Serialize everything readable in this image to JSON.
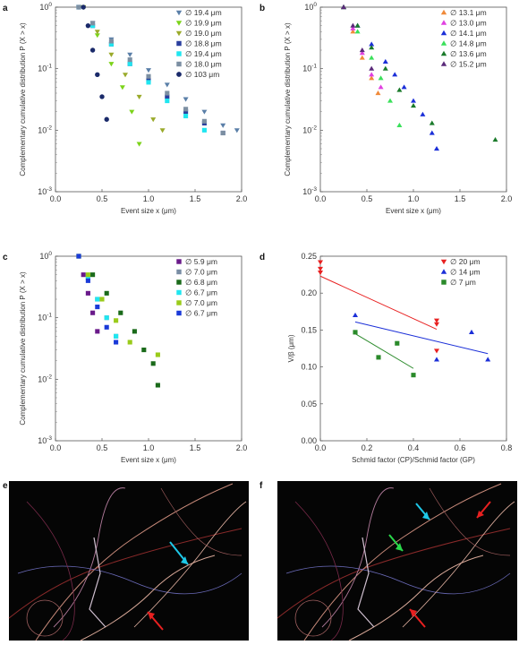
{
  "chart_data": [
    {
      "panel": "a",
      "type": "scatter",
      "yscale": "log",
      "xlabel": "Event size x (μm)",
      "ylabel": "Complementary cumulative distribution P (X > x)",
      "xlim": [
        0,
        2.0
      ],
      "ylim": [
        0.001,
        1
      ],
      "xticks": [
        "0.0",
        "0.5",
        "1.0",
        "1.5",
        "2.0"
      ],
      "yticks": [
        "10^0",
        "10^-1",
        "10^-2",
        "10^-3"
      ],
      "legend_position": "top-right",
      "series": [
        {
          "name": "∅ 19.4 μm",
          "marker": "tri-down",
          "color": "#5a7fa8",
          "x": [
            0.25,
            0.4,
            0.6,
            0.8,
            1.0,
            1.2,
            1.4,
            1.6,
            1.8,
            1.95
          ],
          "y": [
            1,
            0.55,
            0.3,
            0.17,
            0.095,
            0.055,
            0.032,
            0.02,
            0.012,
            0.01
          ]
        },
        {
          "name": "∅ 19.9 μm",
          "marker": "tri-down",
          "color": "#7cd31a",
          "x": [
            0.3,
            0.45,
            0.6,
            0.72,
            0.82,
            0.9
          ],
          "y": [
            1,
            0.35,
            0.12,
            0.05,
            0.02,
            0.006
          ]
        },
        {
          "name": "∅ 19.0 μm",
          "marker": "tri-down",
          "color": "#9aaa2a",
          "x": [
            0.3,
            0.45,
            0.6,
            0.75,
            0.9,
            1.05,
            1.15
          ],
          "y": [
            1,
            0.4,
            0.17,
            0.08,
            0.035,
            0.015,
            0.01
          ]
        },
        {
          "name": "∅ 18.8 μm",
          "marker": "square",
          "color": "#2a3f9e",
          "x": [
            0.25,
            0.4,
            0.6,
            0.8,
            1.0,
            1.2,
            1.4,
            1.6,
            1.8
          ],
          "y": [
            1,
            0.5,
            0.25,
            0.12,
            0.065,
            0.035,
            0.02,
            0.013,
            0.009
          ]
        },
        {
          "name": "∅ 19.4 μm",
          "marker": "square",
          "color": "#20e6f0",
          "x": [
            0.25,
            0.4,
            0.6,
            0.8,
            1.0,
            1.2,
            1.4,
            1.6
          ],
          "y": [
            1,
            0.5,
            0.25,
            0.12,
            0.06,
            0.03,
            0.017,
            0.01
          ]
        },
        {
          "name": "∅ 18.0 μm",
          "marker": "square",
          "color": "#7c8fa2",
          "x": [
            0.25,
            0.4,
            0.6,
            0.8,
            1.0,
            1.2,
            1.4,
            1.6,
            1.8
          ],
          "y": [
            1,
            0.55,
            0.28,
            0.14,
            0.075,
            0.04,
            0.022,
            0.014,
            0.009
          ]
        },
        {
          "name": "∅ 103 μm",
          "marker": "circle",
          "color": "#1a2a6a",
          "x": [
            0.3,
            0.35,
            0.4,
            0.45,
            0.5,
            0.55
          ],
          "y": [
            1,
            0.5,
            0.2,
            0.08,
            0.035,
            0.015
          ]
        }
      ]
    },
    {
      "panel": "b",
      "type": "scatter",
      "yscale": "log",
      "xlabel": "Event size x (μm)",
      "ylabel": "Complementary cumulative distribution P (X > x)",
      "xlim": [
        0,
        2.0
      ],
      "ylim": [
        0.001,
        1
      ],
      "xticks": [
        "0.0",
        "0.5",
        "1.0",
        "1.5",
        "2.0"
      ],
      "yticks": [
        "10^0",
        "10^-1",
        "10^-2",
        "10^-3"
      ],
      "legend_position": "top-right",
      "series": [
        {
          "name": "∅ 13.1 μm",
          "marker": "tri-up",
          "color": "#f08a3a",
          "x": [
            0.25,
            0.35,
            0.45,
            0.55,
            0.62
          ],
          "y": [
            1,
            0.4,
            0.15,
            0.07,
            0.04
          ]
        },
        {
          "name": "∅ 13.0 μm",
          "marker": "tri-up",
          "color": "#e040e0",
          "x": [
            0.25,
            0.35,
            0.45,
            0.55,
            0.65
          ],
          "y": [
            1,
            0.45,
            0.18,
            0.08,
            0.05
          ]
        },
        {
          "name": "∅ 14.1 μm",
          "marker": "tri-up",
          "color": "#1b2fd8",
          "x": [
            0.25,
            0.4,
            0.55,
            0.7,
            0.8,
            0.9,
            1.0,
            1.1,
            1.2,
            1.25
          ],
          "y": [
            1,
            0.5,
            0.25,
            0.13,
            0.08,
            0.05,
            0.03,
            0.018,
            0.009,
            0.005
          ]
        },
        {
          "name": "∅ 14.8 μm",
          "marker": "tri-up",
          "color": "#3ae05a",
          "x": [
            0.25,
            0.4,
            0.55,
            0.65,
            0.75,
            0.85
          ],
          "y": [
            1,
            0.4,
            0.15,
            0.07,
            0.03,
            0.012
          ]
        },
        {
          "name": "∅ 13.6 μm",
          "marker": "tri-up",
          "color": "#1a7a2a",
          "x": [
            0.25,
            0.4,
            0.55,
            0.7,
            0.85,
            1.0,
            1.2,
            1.88
          ],
          "y": [
            1,
            0.5,
            0.22,
            0.1,
            0.045,
            0.025,
            0.013,
            0.007
          ]
        },
        {
          "name": "∅ 15.2 μm",
          "marker": "tri-up",
          "color": "#5a2a7a",
          "x": [
            0.25,
            0.35,
            0.45,
            0.55
          ],
          "y": [
            1,
            0.5,
            0.2,
            0.1
          ]
        }
      ]
    },
    {
      "panel": "c",
      "type": "scatter",
      "yscale": "log",
      "xlabel": "Event size x (μm)",
      "ylabel": "Complementary cumulative distribution P (X > x)",
      "xlim": [
        0,
        2.0
      ],
      "ylim": [
        0.001,
        1
      ],
      "xticks": [
        "0.0",
        "0.5",
        "1.0",
        "1.5",
        "2.0"
      ],
      "yticks": [
        "10^0",
        "10^-1",
        "10^-2",
        "10^-3"
      ],
      "legend_position": "top-right",
      "series": [
        {
          "name": "∅ 5.9 μm",
          "marker": "square",
          "color": "#6a1a8a",
          "x": [
            0.25,
            0.3,
            0.35,
            0.4,
            0.45
          ],
          "y": [
            1,
            0.5,
            0.25,
            0.12,
            0.06
          ]
        },
        {
          "name": "∅ 7.0 μm",
          "marker": "square",
          "color": "#7a8ea4",
          "x": [
            0.25,
            0.35,
            0.45,
            0.55,
            0.65
          ],
          "y": [
            1,
            0.45,
            0.2,
            0.1,
            0.05
          ]
        },
        {
          "name": "∅ 6.8 μm",
          "marker": "square",
          "color": "#1a6a1a",
          "x": [
            0.25,
            0.4,
            0.55,
            0.7,
            0.85,
            0.95,
            1.05,
            1.1
          ],
          "y": [
            1,
            0.5,
            0.25,
            0.12,
            0.06,
            0.03,
            0.018,
            0.008
          ]
        },
        {
          "name": "∅ 6.7 μm",
          "marker": "square",
          "color": "#20e6f0",
          "x": [
            0.25,
            0.35,
            0.45,
            0.55,
            0.65
          ],
          "y": [
            1,
            0.45,
            0.2,
            0.1,
            0.05
          ]
        },
        {
          "name": "∅ 7.0 μm",
          "marker": "square",
          "color": "#9acb1a",
          "x": [
            0.25,
            0.35,
            0.5,
            0.65,
            0.8,
            1.1
          ],
          "y": [
            1,
            0.5,
            0.2,
            0.09,
            0.04,
            0.025
          ]
        },
        {
          "name": "∅ 6.7 μm",
          "marker": "square",
          "color": "#1a3ad8",
          "x": [
            0.25,
            0.35,
            0.45,
            0.55,
            0.65
          ],
          "y": [
            1,
            0.4,
            0.15,
            0.07,
            0.04
          ]
        }
      ]
    },
    {
      "panel": "d",
      "type": "scatter",
      "xlabel": "Schmid factor (CP)/Schmid factor (GP)",
      "ylabel": "V/β (μm)",
      "xlim": [
        0,
        0.8
      ],
      "ylim": [
        0,
        0.25
      ],
      "xticks": [
        "0.0",
        "0.2",
        "0.4",
        "0.6",
        "0.8"
      ],
      "yticks": [
        "0.25",
        "0.20",
        "0.15",
        "0.10",
        "0.05",
        "0.00"
      ],
      "legend_position": "top-right",
      "series": [
        {
          "name": "∅ 20 μm",
          "marker": "tri-down",
          "color": "#e82020",
          "x": [
            0,
            0,
            0,
            0.5,
            0.5,
            0.5
          ],
          "y": [
            0.242,
            0.233,
            0.228,
            0.163,
            0.158,
            0.122
          ],
          "fit": [
            [
              0,
              0.223
            ],
            [
              0.5,
              0.151
            ]
          ]
        },
        {
          "name": "∅ 14 μm",
          "marker": "tri-up",
          "color": "#1b2fd8",
          "x": [
            0.15,
            0.5,
            0.65,
            0.72
          ],
          "y": [
            0.17,
            0.11,
            0.147,
            0.11
          ],
          "fit": [
            [
              0.15,
              0.161
            ],
            [
              0.72,
              0.118
            ]
          ]
        },
        {
          "name": "∅ 7 μm",
          "marker": "square",
          "color": "#2a8a2a",
          "x": [
            0.15,
            0.25,
            0.33,
            0.4
          ],
          "y": [
            0.147,
            0.113,
            0.132,
            0.089
          ],
          "fit": [
            [
              0.15,
              0.145
            ],
            [
              0.4,
              0.098
            ]
          ]
        }
      ]
    }
  ],
  "panels": {
    "a": "a",
    "b": "b",
    "c": "c",
    "d": "d",
    "e": "e",
    "f": "f"
  },
  "colors": {
    "arrow_cyan": "#1ec8e8",
    "arrow_red": "#e82020",
    "arrow_green": "#2ad84a"
  }
}
